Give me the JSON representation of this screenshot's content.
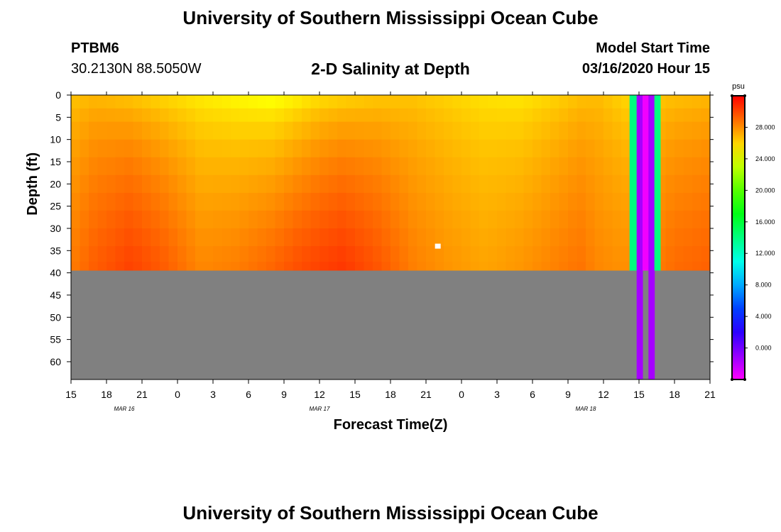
{
  "header": {
    "title": "University of Southern Mississippi Ocean Cube",
    "station_id": "PTBM6",
    "station_coords": "30.2130N 88.5050W",
    "chart_title": "2-D Salinity at Depth",
    "model_label": "Model Start Time",
    "model_time": "03/16/2020 Hour 15"
  },
  "footer": {
    "title": "University of Southern Mississippi Ocean Cube"
  },
  "colors": {
    "background": "#ffffff",
    "no_data_gray": "#808080",
    "marker": "#ffffff"
  },
  "chart_data": {
    "type": "heatmap",
    "title": "2-D Salinity at Depth",
    "xlabel": "Forecast Time(Z)",
    "ylabel": "Depth (ft)",
    "x_hours_range": [
      0,
      54
    ],
    "x_tick_labels": [
      "15",
      "18",
      "21",
      "0",
      "3",
      "6",
      "9",
      "12",
      "15",
      "18",
      "21",
      "0",
      "3",
      "6",
      "9",
      "12",
      "15",
      "18",
      "21"
    ],
    "date_labels": [
      {
        "label": "MAR 16",
        "hour": 4.5
      },
      {
        "label": "MAR 17",
        "hour": 21
      },
      {
        "label": "MAR 18",
        "hour": 43.5
      }
    ],
    "y_range_ft": [
      0,
      64
    ],
    "y_ticks": [
      0,
      5,
      10,
      15,
      20,
      25,
      30,
      35,
      40,
      45,
      50,
      55,
      60
    ],
    "bottom_depth_ft": 39.5,
    "colorbar": {
      "unit": "psu",
      "range": [
        -4,
        32
      ],
      "tick_values": [
        0,
        4,
        8,
        12,
        16,
        20,
        24,
        28
      ],
      "tick_labels": [
        "0.000",
        "4.000",
        "8.000",
        "12.000",
        "16.000",
        "20.000",
        "24.000",
        "28.000"
      ]
    },
    "salinity_profile": {
      "hours": [
        0,
        2,
        5,
        8,
        11,
        14,
        17,
        19,
        21,
        23,
        26,
        29,
        32,
        35,
        38,
        41,
        43,
        44.5,
        46,
        47.5,
        49,
        51,
        54
      ],
      "surface_psu": [
        26.2,
        26.5,
        26.0,
        25.5,
        25.0,
        24.5,
        24.0,
        24.5,
        25.2,
        25.5,
        26.0,
        26.2,
        25.8,
        25.4,
        25.2,
        25.8,
        26.3,
        26.5,
        26.0,
        25.5,
        26.0,
        26.3,
        26.5
      ],
      "bottom_psu": [
        28.5,
        29.4,
        30.2,
        29.4,
        28.2,
        28.5,
        29.2,
        29.8,
        30.2,
        30.5,
        29.6,
        28.4,
        27.8,
        27.4,
        27.8,
        28.4,
        28.8,
        28.2,
        28.0,
        28.0,
        28.4,
        29.0,
        29.3
      ]
    },
    "anomaly_bands": [
      {
        "hour_start": 47.2,
        "hour_end": 47.8,
        "surface_psu": 14,
        "bottom_psu": 14,
        "to_bottom_of_plot": false
      },
      {
        "hour_start": 47.8,
        "hour_end": 48.3,
        "surface_psu": -1.5,
        "bottom_psu": -1.5,
        "to_bottom_of_plot": true
      },
      {
        "hour_start": 48.3,
        "hour_end": 48.8,
        "surface_psu": -3.6,
        "bottom_psu": -3.6,
        "to_bottom_of_plot": false
      },
      {
        "hour_start": 48.8,
        "hour_end": 49.3,
        "surface_psu": -1.5,
        "bottom_psu": -1.5,
        "to_bottom_of_plot": true
      },
      {
        "hour_start": 49.3,
        "hour_end": 49.8,
        "surface_psu": 14,
        "bottom_psu": 14,
        "to_bottom_of_plot": false
      }
    ],
    "marker": {
      "hour": 31,
      "depth_ft": 34
    }
  }
}
